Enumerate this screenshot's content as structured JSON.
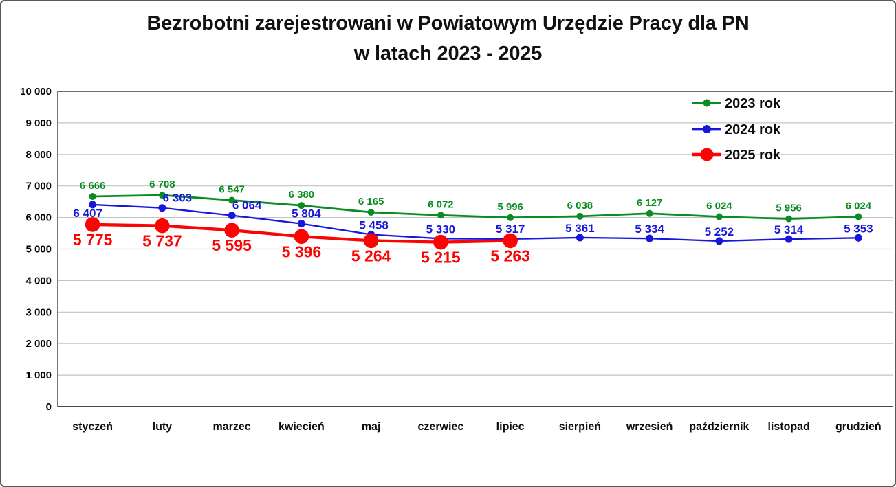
{
  "title": {
    "line1": "Bezrobotni zarejestrowani w Powiatowym Urzędzie Pracy dla PN",
    "line2": "w latach 2023 - 2025"
  },
  "chart_data": {
    "type": "line",
    "title": "Bezrobotni zarejestrowani w Powiatowym Urzędzie Pracy dla PN w latach 2023 - 2025",
    "categories": [
      "styczeń",
      "luty",
      "marzec",
      "kwiecień",
      "maj",
      "czerwiec",
      "lipiec",
      "sierpień",
      "wrzesień",
      "październik",
      "listopad",
      "grudzień"
    ],
    "series": [
      {
        "name": "2023 rok",
        "color": "#0b8c23",
        "values": [
          6666,
          6708,
          6547,
          6380,
          6165,
          6072,
          5996,
          6038,
          6127,
          6024,
          5956,
          6024
        ]
      },
      {
        "name": "2024 rok",
        "color": "#1616dd",
        "values": [
          6407,
          6303,
          6064,
          5804,
          5458,
          5330,
          5317,
          5361,
          5334,
          5252,
          5314,
          5353
        ]
      },
      {
        "name": "2025 rok",
        "color": "#fb0404",
        "values": [
          5775,
          5737,
          5595,
          5396,
          5264,
          5215,
          5263
        ]
      }
    ],
    "ylim": [
      0,
      10000
    ],
    "ytick_step": 1000,
    "ytick_labels": [
      "0",
      "1 000",
      "2 000",
      "3 000",
      "4 000",
      "5 000",
      "6 000",
      "7 000",
      "8 000",
      "9 000",
      "10 000"
    ],
    "grid": true,
    "legend_position": "top-right",
    "data_labels": true
  }
}
